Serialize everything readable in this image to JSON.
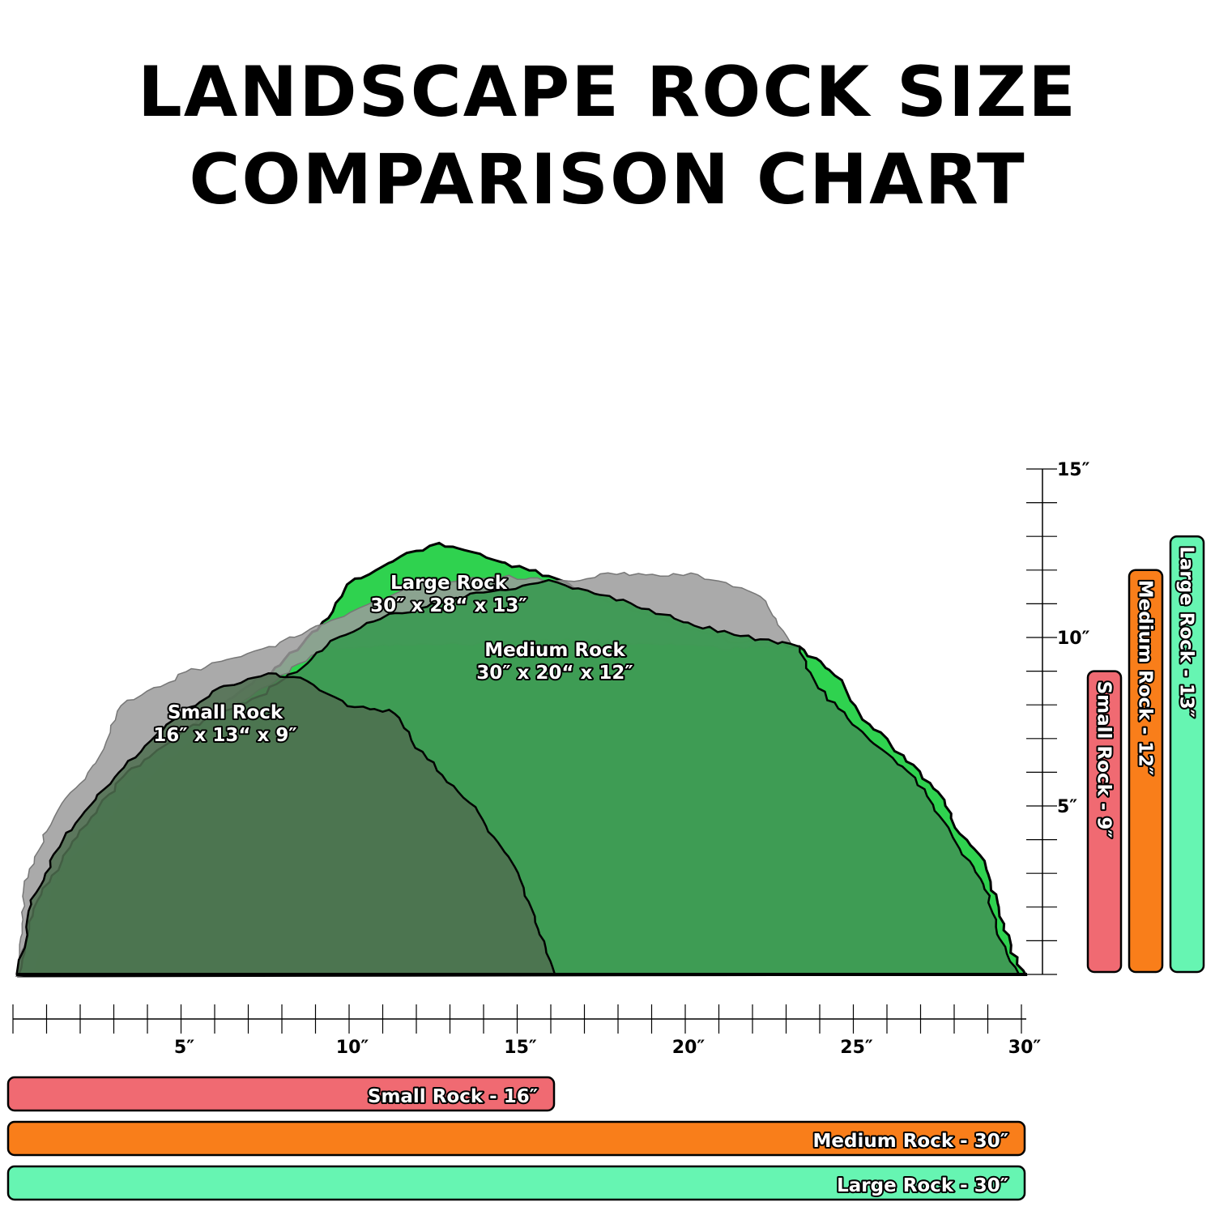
{
  "title_line1": "LANDSCAPE ROCK SIZE",
  "title_line2": "COMPARISON CHART",
  "chart_data": {
    "type": "bar",
    "x_axis": {
      "unit": "″",
      "range": [
        0,
        30
      ],
      "tick_labels": [
        "5″",
        "10″",
        "15″",
        "20″",
        "25″",
        "30″"
      ],
      "label_values": [
        5,
        10,
        15,
        20,
        25,
        30
      ]
    },
    "y_axis": {
      "unit": "″",
      "range": [
        0,
        15
      ],
      "tick_labels": [
        "5″",
        "10″",
        "15″"
      ],
      "label_values": [
        5,
        10,
        15
      ]
    },
    "rocks": [
      {
        "name": "Small Rock",
        "dims": "16″ x 13“ x 9″",
        "length": 16,
        "width": 13,
        "height": 9,
        "color": "#f06a72"
      },
      {
        "name": "Medium Rock",
        "dims": "30″ x 20“ x 12″",
        "length": 30,
        "width": 20,
        "height": 12,
        "color": "#f97e1a"
      },
      {
        "name": "Large Rock",
        "dims": "30″ x 28“ x 13″",
        "length": 30,
        "width": 28,
        "height": 13,
        "color": "#66f5b2"
      }
    ],
    "length_bars": [
      {
        "label": "Small Rock - 16″",
        "value": 16,
        "color": "#f06a72"
      },
      {
        "label": "Medium Rock - 30″",
        "value": 30,
        "color": "#f97e1a"
      },
      {
        "label": "Large Rock - 30″",
        "value": 30,
        "color": "#66f5b2"
      }
    ],
    "height_bars": [
      {
        "label": "Small Rock - 9″",
        "value": 9,
        "color": "#f06a72"
      },
      {
        "label": "Medium Rock - 12″",
        "value": 12,
        "color": "#f97e1a"
      },
      {
        "label": "Large Rock - 13″",
        "value": 13,
        "color": "#66f5b2"
      }
    ]
  }
}
